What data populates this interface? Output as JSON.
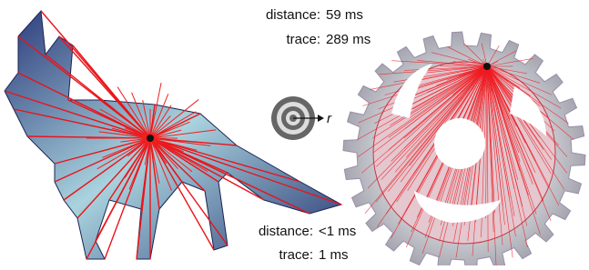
{
  "labels": {
    "gear": {
      "distance_key": "distance:",
      "distance_value": "59 ms",
      "trace_key": "trace:",
      "trace_value": "289 ms"
    },
    "fox": {
      "distance_key": "distance:",
      "distance_value": "<1 ms",
      "trace_key": "trace:",
      "trace_value": "1 ms"
    },
    "icon": {
      "radius_symbol": "r"
    }
  }
}
